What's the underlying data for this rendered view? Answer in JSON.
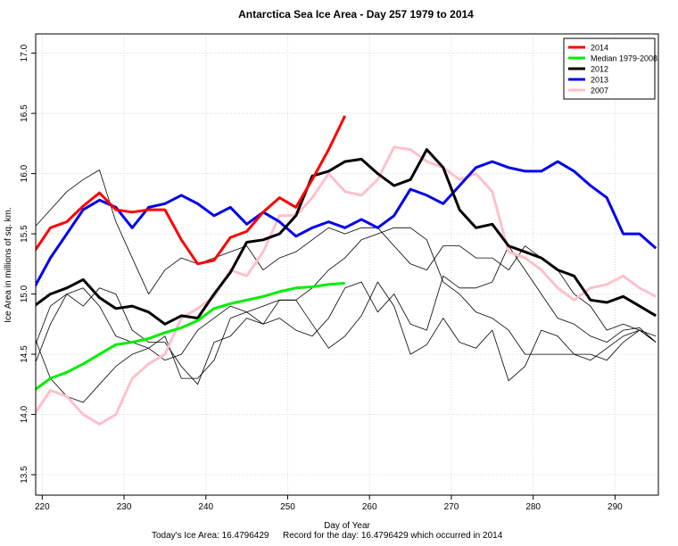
{
  "chart_data": {
    "type": "line",
    "title": "Antarctica Sea Ice Area - Day 257 1979 to 2014",
    "x_label": "Day of Year",
    "y_label": "Ice Area in millions of sq. km.",
    "captions": [
      "Today's Ice Area: 16.4796429",
      "Record for the day: 16.4796429 which occurred in 2014"
    ],
    "x": [
      219,
      221,
      223,
      225,
      227,
      229,
      231,
      233,
      235,
      237,
      239,
      241,
      243,
      245,
      247,
      249,
      251,
      253,
      255,
      257,
      259,
      261,
      263,
      265,
      267,
      269,
      271,
      273,
      275,
      277,
      279,
      281,
      283,
      285,
      287,
      289,
      291,
      293,
      295
    ],
    "xlim": [
      219.2,
      295.3
    ],
    "xticks": [
      220,
      230,
      240,
      250,
      260,
      270,
      280,
      290
    ],
    "ylim": [
      13.33,
      17.16
    ],
    "yticks": [
      13.5,
      {
        "value": 14,
        "label": "14.0"
      },
      14.5,
      {
        "value": 15,
        "label": "15.0"
      },
      15.5,
      {
        "value": 16,
        "label": "16.0"
      },
      16.5,
      {
        "value": 17,
        "label": "17.0"
      }
    ],
    "grid": true,
    "legend": "top-right",
    "series": [
      {
        "name": "2014",
        "color": "#ff0000",
        "line_width": 3,
        "values": [
          15.35,
          15.55,
          15.6,
          15.73,
          15.84,
          15.7,
          15.68,
          15.7,
          15.7,
          15.45,
          15.25,
          15.28,
          15.47,
          15.52,
          15.68,
          15.8,
          15.72,
          15.95,
          16.2,
          16.48,
          null,
          null,
          null,
          null,
          null,
          null,
          null,
          null,
          null,
          null,
          null,
          null,
          null,
          null,
          null,
          null,
          null,
          null,
          null
        ]
      },
      {
        "name": "Median 1979-2008",
        "color": "#00ee00",
        "line_width": 3,
        "values": [
          14.2,
          14.3,
          14.35,
          14.42,
          14.5,
          14.58,
          14.6,
          14.63,
          14.68,
          14.72,
          14.78,
          14.88,
          14.92,
          14.95,
          14.98,
          15.02,
          15.05,
          15.06,
          15.08,
          15.09,
          null,
          null,
          null,
          null,
          null,
          null,
          null,
          null,
          null,
          null,
          null,
          null,
          null,
          null,
          null,
          null,
          null,
          null,
          null
        ]
      },
      {
        "name": "2012",
        "color": "#000000",
        "line_width": 3,
        "values": [
          14.9,
          15.0,
          15.05,
          15.12,
          14.97,
          14.88,
          14.9,
          14.85,
          14.75,
          14.82,
          14.8,
          15.0,
          15.18,
          15.43,
          15.45,
          15.5,
          15.65,
          15.98,
          16.02,
          16.1,
          16.12,
          16.0,
          15.9,
          15.95,
          16.2,
          16.05,
          15.7,
          15.55,
          15.58,
          15.4,
          15.35,
          15.3,
          15.2,
          15.15,
          14.95,
          14.93,
          14.98,
          14.9,
          14.82
        ]
      },
      {
        "name": "2013",
        "color": "#0000ee",
        "line_width": 3,
        "values": [
          15.05,
          15.3,
          15.5,
          15.7,
          15.78,
          15.72,
          15.55,
          15.72,
          15.75,
          15.82,
          15.75,
          15.65,
          15.72,
          15.58,
          15.68,
          15.6,
          15.48,
          15.55,
          15.6,
          15.55,
          15.62,
          15.55,
          15.65,
          15.87,
          15.82,
          15.75,
          15.9,
          16.05,
          16.1,
          16.05,
          16.02,
          16.02,
          16.1,
          16.02,
          15.9,
          15.8,
          15.5,
          15.5,
          15.38
        ]
      },
      {
        "name": "2007",
        "color": "#ffc0cb",
        "line_width": 3,
        "values": [
          14.0,
          14.2,
          14.15,
          14.0,
          13.92,
          14.0,
          14.3,
          14.42,
          14.5,
          14.8,
          14.88,
          14.98,
          15.2,
          15.15,
          15.35,
          15.65,
          15.65,
          15.8,
          16.0,
          15.85,
          15.82,
          15.95,
          16.22,
          16.2,
          16.1,
          16.05,
          15.95,
          16.0,
          15.85,
          15.35,
          15.3,
          15.2,
          15.05,
          14.95,
          15.05,
          15.08,
          15.15,
          15.05,
          14.98
        ]
      },
      {
        "color": "#000000",
        "line_width": 0.8,
        "values": [
          15.55,
          15.7,
          15.85,
          15.95,
          16.03,
          15.6,
          15.3,
          15.0,
          15.2,
          15.3,
          15.25,
          15.3,
          15.35,
          15.4,
          15.2,
          15.3,
          15.35,
          15.45,
          15.55,
          15.5,
          15.55,
          15.55,
          15.4,
          15.25,
          15.2,
          15.4,
          15.4,
          15.3,
          15.3,
          15.2,
          15.4,
          15.3,
          15.2,
          15.0,
          14.9,
          14.7,
          14.75,
          14.7,
          14.6
        ]
      },
      {
        "color": "#000000",
        "line_width": 0.8,
        "values": [
          14.4,
          14.75,
          15.0,
          14.9,
          15.05,
          15.0,
          14.7,
          14.6,
          14.6,
          14.4,
          14.25,
          14.6,
          14.65,
          14.8,
          14.75,
          14.95,
          14.95,
          14.75,
          14.55,
          14.65,
          14.82,
          15.1,
          14.9,
          14.5,
          14.58,
          14.8,
          14.6,
          14.55,
          14.7,
          14.28,
          14.4,
          14.7,
          14.65,
          14.5,
          14.5,
          14.45,
          14.6,
          14.7,
          14.6
        ]
      },
      {
        "color": "#000000",
        "line_width": 0.8,
        "values": [
          14.55,
          14.9,
          15.0,
          15.05,
          14.9,
          14.65,
          14.6,
          14.55,
          14.45,
          14.5,
          14.7,
          14.8,
          14.9,
          14.85,
          14.75,
          14.8,
          14.7,
          14.65,
          14.8,
          15.05,
          15.1,
          14.85,
          15.0,
          14.75,
          14.7,
          15.15,
          15.05,
          15.05,
          15.1,
          15.4,
          15.2,
          15.0,
          14.8,
          14.75,
          14.65,
          14.6,
          14.7,
          14.72,
          14.6
        ]
      },
      {
        "color": "#000000",
        "line_width": 0.8,
        "values": [
          14.65,
          14.3,
          14.15,
          14.1,
          14.25,
          14.4,
          14.5,
          14.55,
          14.65,
          14.3,
          14.3,
          14.45,
          14.8,
          14.85,
          14.9,
          14.95,
          14.95,
          15.05,
          15.2,
          15.3,
          15.45,
          15.5,
          15.55,
          15.55,
          15.45,
          15.1,
          15.0,
          14.85,
          14.8,
          14.7,
          14.5,
          14.5,
          14.5,
          14.5,
          14.45,
          14.55,
          14.65,
          14.7,
          14.65
        ]
      }
    ]
  }
}
